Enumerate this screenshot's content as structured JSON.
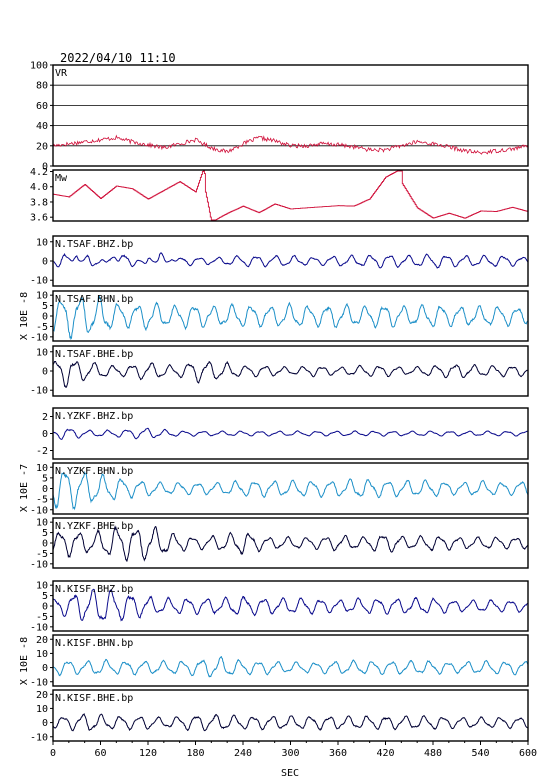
{
  "title": "2022/04/10  11:10",
  "xlabel": "SEC",
  "x_range": [
    0,
    600
  ],
  "x_ticks": [
    "0",
    "60",
    "120",
    "180",
    "240",
    "300",
    "360",
    "420",
    "480",
    "540",
    "600"
  ],
  "colors": {
    "vr": "#d0103a",
    "mw": "#d0103a",
    "bhz": "#0a0a8c",
    "bhn": "#1e90c8",
    "bhe": "#000033",
    "grid": "#000000"
  },
  "groups": [
    {
      "ylabel": "X 10E -8"
    },
    {
      "ylabel": "X 10E -7"
    },
    {
      "ylabel": "X 10E -8"
    }
  ],
  "chart_data": [
    {
      "type": "line",
      "name": "VR",
      "ylim": [
        0,
        100
      ],
      "y_ticks": [
        "100",
        "80",
        "60",
        "40",
        "20",
        "0"
      ],
      "grid": true,
      "x": [
        0,
        20,
        40,
        60,
        80,
        100,
        120,
        140,
        160,
        180,
        200,
        220,
        240,
        260,
        280,
        300,
        320,
        340,
        360,
        380,
        400,
        420,
        440,
        460,
        480,
        500,
        520,
        540,
        560,
        580,
        600
      ],
      "values": [
        20,
        22,
        24,
        26,
        28,
        24,
        21,
        18,
        22,
        26,
        18,
        14,
        22,
        28,
        25,
        20,
        20,
        22,
        21,
        19,
        16,
        16,
        20,
        24,
        22,
        19,
        15,
        13,
        15,
        17,
        20
      ]
    },
    {
      "type": "line",
      "name": "Mw",
      "ylim": [
        3.55,
        4.22
      ],
      "y_ticks": [
        "4.2",
        "4.0",
        "3.8",
        "3.6"
      ],
      "grid": false,
      "x": [
        0,
        20,
        40,
        60,
        80,
        100,
        120,
        140,
        160,
        180,
        190,
        200,
        220,
        240,
        260,
        280,
        300,
        320,
        340,
        360,
        380,
        400,
        420,
        440,
        460,
        480,
        500,
        520,
        540,
        560,
        580,
        600
      ],
      "values": [
        3.95,
        3.9,
        4.05,
        3.85,
        4.0,
        3.95,
        3.8,
        3.9,
        4.0,
        3.85,
        4.15,
        3.62,
        3.72,
        3.8,
        3.7,
        3.8,
        3.72,
        3.72,
        3.72,
        3.72,
        3.7,
        3.78,
        4.05,
        4.15,
        3.8,
        3.65,
        3.7,
        3.62,
        3.7,
        3.68,
        3.72,
        3.65
      ]
    },
    {
      "type": "line",
      "name": "N.TSAF.BHZ.bp",
      "group": 0,
      "component": "bhz",
      "ylim": [
        -13,
        13
      ],
      "y_ticks": [
        "10",
        "0",
        "-10"
      ],
      "x": [
        0,
        15,
        30,
        45,
        60,
        75,
        90,
        105,
        120,
        135,
        150,
        165,
        180,
        210,
        240,
        270,
        300,
        330,
        360,
        390,
        420,
        450,
        480,
        510,
        540,
        570,
        600
      ],
      "values": [
        2,
        5,
        -3,
        4,
        2,
        -4,
        5,
        2,
        -3,
        5,
        -1,
        3,
        2,
        2,
        3,
        3,
        3,
        2,
        3,
        3,
        4,
        3,
        4,
        3,
        3,
        3,
        2
      ]
    },
    {
      "type": "line",
      "name": "N.TSAF.BHN.bp",
      "group": 0,
      "component": "bhn",
      "ylim": [
        -12,
        12
      ],
      "y_ticks": [
        "10",
        "5",
        "0",
        "-5",
        "-10"
      ],
      "x": [
        0,
        15,
        30,
        45,
        60,
        75,
        90,
        105,
        120,
        135,
        150,
        165,
        180,
        210,
        240,
        270,
        300,
        330,
        360,
        390,
        420,
        450,
        480,
        510,
        540,
        570,
        600
      ],
      "values": [
        8,
        10,
        11,
        10,
        9,
        7,
        6,
        6,
        7,
        6,
        5,
        6,
        6,
        5,
        6,
        5,
        6,
        5,
        6,
        5,
        6,
        5,
        6,
        5,
        5,
        5,
        4
      ]
    },
    {
      "type": "line",
      "name": "N.TSAF.BHE.bp",
      "group": 0,
      "component": "bhe",
      "ylim": [
        -13,
        13
      ],
      "y_ticks": [
        "10",
        "0",
        "-10"
      ],
      "x": [
        0,
        15,
        30,
        45,
        60,
        75,
        90,
        105,
        120,
        135,
        150,
        165,
        180,
        210,
        240,
        270,
        300,
        330,
        360,
        390,
        420,
        450,
        480,
        510,
        540,
        570,
        600
      ],
      "values": [
        5,
        9,
        6,
        5,
        4,
        3,
        3,
        4,
        5,
        4,
        3,
        4,
        6,
        5,
        3,
        3,
        2,
        3,
        2,
        3,
        3,
        2,
        3,
        4,
        3,
        3,
        3
      ]
    },
    {
      "type": "line",
      "name": "N.YZKF.BHZ.bp",
      "group": 1,
      "component": "bhz",
      "ylim": [
        -3,
        3
      ],
      "y_ticks": [
        "2",
        "0",
        "-2"
      ],
      "x": [
        0,
        15,
        30,
        45,
        60,
        75,
        90,
        105,
        120,
        135,
        150,
        165,
        180,
        210,
        240,
        270,
        300,
        330,
        360,
        390,
        420,
        450,
        480,
        510,
        540,
        570,
        600
      ],
      "values": [
        0.5,
        0.8,
        0.6,
        0.4,
        0.4,
        0.4,
        0.5,
        0.6,
        0.7,
        0.5,
        0.4,
        0.3,
        0.3,
        0.3,
        0.3,
        0.3,
        0.3,
        0.3,
        0.3,
        0.3,
        0.3,
        0.3,
        0.3,
        0.3,
        0.3,
        0.3,
        0.3
      ]
    },
    {
      "type": "line",
      "name": "N.YZKF.BHN.bp",
      "group": 1,
      "component": "bhn",
      "ylim": [
        -12,
        12
      ],
      "y_ticks": [
        "10",
        "5",
        "0",
        "-5",
        "-10"
      ],
      "x": [
        0,
        15,
        30,
        45,
        60,
        75,
        90,
        105,
        120,
        135,
        150,
        165,
        180,
        210,
        240,
        270,
        300,
        330,
        360,
        390,
        420,
        450,
        480,
        510,
        540,
        570,
        600
      ],
      "values": [
        9,
        11,
        9,
        8,
        7,
        6,
        5,
        4,
        4,
        3,
        3,
        3,
        3,
        3,
        4,
        4,
        4,
        4,
        4,
        5,
        4,
        4,
        4,
        3,
        4,
        3,
        4
      ]
    },
    {
      "type": "line",
      "name": "N.YZKF.BHE.bp",
      "group": 1,
      "component": "bhe",
      "ylim": [
        -12,
        12
      ],
      "y_ticks": [
        "10",
        "5",
        "0",
        "-5",
        "-10"
      ],
      "x": [
        0,
        15,
        30,
        45,
        60,
        75,
        90,
        105,
        120,
        135,
        150,
        165,
        180,
        210,
        240,
        270,
        300,
        330,
        360,
        390,
        420,
        450,
        480,
        510,
        540,
        570,
        600
      ],
      "values": [
        5,
        7,
        6,
        5,
        6,
        8,
        9,
        8,
        9,
        7,
        5,
        4,
        3,
        4,
        6,
        3,
        3,
        3,
        4,
        3,
        5,
        3,
        4,
        3,
        3,
        3,
        3
      ]
    },
    {
      "type": "line",
      "name": "N.KISF.BHZ.bp",
      "group": 2,
      "component": "bhz",
      "ylim": [
        -12,
        12
      ],
      "y_ticks": [
        "10",
        "5",
        "0",
        "-5",
        "-10"
      ],
      "x": [
        0,
        15,
        30,
        45,
        60,
        75,
        90,
        105,
        120,
        135,
        150,
        165,
        180,
        210,
        240,
        270,
        300,
        330,
        360,
        390,
        420,
        450,
        480,
        510,
        540,
        570,
        600
      ],
      "values": [
        4,
        5,
        7,
        8,
        10,
        8,
        7,
        6,
        5,
        4,
        4,
        4,
        4,
        4,
        5,
        4,
        4,
        4,
        3,
        4,
        4,
        4,
        4,
        3,
        3,
        3,
        3
      ]
    },
    {
      "type": "line",
      "name": "N.KISF.BHN.bp",
      "group": 2,
      "component": "bhn",
      "ylim": [
        -13,
        23
      ],
      "y_ticks": [
        "20",
        "10",
        "0",
        "-10"
      ],
      "x": [
        0,
        15,
        30,
        45,
        60,
        75,
        90,
        105,
        120,
        135,
        150,
        165,
        180,
        210,
        240,
        270,
        300,
        330,
        360,
        390,
        420,
        450,
        480,
        510,
        540,
        570,
        600
      ],
      "values": [
        5,
        6,
        5,
        5,
        6,
        5,
        5,
        5,
        5,
        5,
        5,
        5,
        6,
        8,
        5,
        5,
        4,
        4,
        5,
        5,
        5,
        5,
        5,
        4,
        5,
        5,
        5
      ]
    },
    {
      "type": "line",
      "name": "N.KISF.BHE.bp",
      "group": 2,
      "component": "bhe",
      "ylim": [
        -13,
        23
      ],
      "y_ticks": [
        "20",
        "10",
        "0",
        "-10"
      ],
      "x": [
        0,
        15,
        30,
        45,
        60,
        75,
        90,
        105,
        120,
        135,
        150,
        165,
        180,
        210,
        240,
        270,
        300,
        330,
        360,
        390,
        420,
        450,
        480,
        510,
        540,
        570,
        600
      ],
      "values": [
        4,
        5,
        6,
        7,
        6,
        5,
        5,
        5,
        5,
        4,
        4,
        5,
        6,
        6,
        5,
        5,
        5,
        5,
        5,
        5,
        5,
        5,
        5,
        4,
        4,
        4,
        4
      ]
    }
  ]
}
